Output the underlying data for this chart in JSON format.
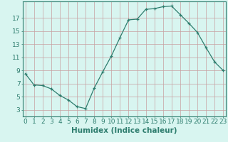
{
  "x": [
    0,
    1,
    2,
    3,
    4,
    5,
    6,
    7,
    8,
    9,
    10,
    11,
    12,
    13,
    14,
    15,
    16,
    17,
    18,
    19,
    20,
    21,
    22,
    23
  ],
  "y": [
    8.5,
    6.8,
    6.7,
    6.2,
    5.2,
    4.5,
    3.5,
    3.2,
    6.3,
    8.8,
    11.2,
    14.0,
    16.7,
    16.8,
    18.3,
    18.4,
    18.7,
    18.8,
    17.5,
    16.2,
    14.8,
    12.5,
    10.3,
    9.0
  ],
  "line_color": "#2e7d6e",
  "marker": "+",
  "marker_size": 3,
  "bg_color": "#d8f5f0",
  "grid_color": "#c8a0a0",
  "xlabel": "Humidex (Indice chaleur)",
  "yticks": [
    3,
    5,
    7,
    9,
    11,
    13,
    15,
    17
  ],
  "xticks": [
    0,
    1,
    2,
    3,
    4,
    5,
    6,
    7,
    8,
    9,
    10,
    11,
    12,
    13,
    14,
    15,
    16,
    17,
    18,
    19,
    20,
    21,
    22,
    23
  ],
  "ylim": [
    2.0,
    19.5
  ],
  "xlim": [
    -0.3,
    23.3
  ],
  "axis_color": "#2e7d6e",
  "tick_color": "#2e7d6e",
  "label_color": "#2e7d6e",
  "font_size_xlabel": 7.5,
  "font_size_ticks": 6.5
}
